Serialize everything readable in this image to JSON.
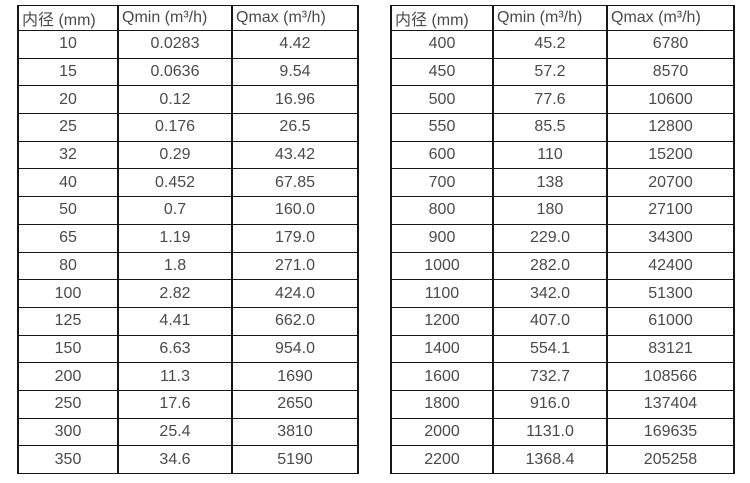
{
  "colors": {
    "background": "#ffffff",
    "border": "#161616",
    "text": "#4a4a4a"
  },
  "tables": [
    {
      "name": "flow-rate-table-small-diameters",
      "headers": [
        "内径 (mm)",
        "Qmin (m³/h)",
        "Qmax (m³/h)"
      ],
      "rows": [
        [
          "10",
          "0.0283",
          "4.42"
        ],
        [
          "15",
          "0.0636",
          "9.54"
        ],
        [
          "20",
          "0.12",
          "16.96"
        ],
        [
          "25",
          "0.176",
          "26.5"
        ],
        [
          "32",
          "0.29",
          "43.42"
        ],
        [
          "40",
          "0.452",
          "67.85"
        ],
        [
          "50",
          "0.7",
          "160.0"
        ],
        [
          "65",
          "1.19",
          "179.0"
        ],
        [
          "80",
          "1.8",
          "271.0"
        ],
        [
          "100",
          "2.82",
          "424.0"
        ],
        [
          "125",
          "4.41",
          "662.0"
        ],
        [
          "150",
          "6.63",
          "954.0"
        ],
        [
          "200",
          "11.3",
          "1690"
        ],
        [
          "250",
          "17.6",
          "2650"
        ],
        [
          "300",
          "25.4",
          "3810"
        ],
        [
          "350",
          "34.6",
          "5190"
        ]
      ]
    },
    {
      "name": "flow-rate-table-large-diameters",
      "headers": [
        "内径 (mm)",
        "Qmin (m³/h)",
        "Qmax (m³/h)"
      ],
      "rows": [
        [
          "400",
          "45.2",
          "6780"
        ],
        [
          "450",
          "57.2",
          "8570"
        ],
        [
          "500",
          "77.6",
          "10600"
        ],
        [
          "550",
          "85.5",
          "12800"
        ],
        [
          "600",
          "110",
          "15200"
        ],
        [
          "700",
          "138",
          "20700"
        ],
        [
          "800",
          "180",
          "27100"
        ],
        [
          "900",
          "229.0",
          "34300"
        ],
        [
          "1000",
          "282.0",
          "42400"
        ],
        [
          "1100",
          "342.0",
          "51300"
        ],
        [
          "1200",
          "407.0",
          "61000"
        ],
        [
          "1400",
          "554.1",
          "83121"
        ],
        [
          "1600",
          "732.7",
          "108566"
        ],
        [
          "1800",
          "916.0",
          "137404"
        ],
        [
          "2000",
          "1131.0",
          "169635"
        ],
        [
          "2200",
          "1368.4",
          "205258"
        ]
      ]
    }
  ]
}
